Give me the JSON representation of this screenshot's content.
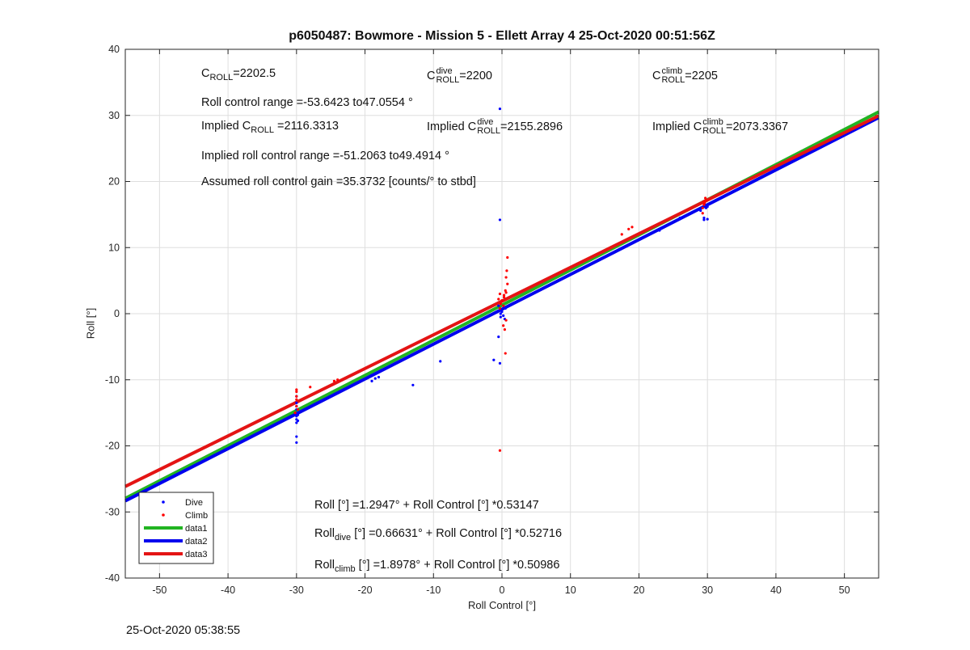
{
  "figure": {
    "title": "p6050487: Bowmore - Mission 5 - Ellett Array 4 25-Oct-2020 00:51:56Z",
    "timestamp": "25-Oct-2020 05:38:55"
  },
  "annotations": {
    "c_roll": {
      "base": "C",
      "sub": "ROLL",
      "value": "=2202.5"
    },
    "c_roll_dive": {
      "base": "C",
      "sup": "dive",
      "sub": "ROLL",
      "value": "=2200"
    },
    "c_roll_climb": {
      "base": "C",
      "sup": "climb",
      "sub": "ROLL",
      "value": "=2205"
    },
    "roll_range": "Roll control range =-53.6423 to47.0554 °",
    "implied_c_roll": {
      "prefix": "Implied C",
      "sub": "ROLL",
      "value": "=2116.3313"
    },
    "implied_c_roll_dive": {
      "prefix": "Implied C",
      "sup": "dive",
      "sub": "ROLL",
      "value": "=2155.2896"
    },
    "implied_c_roll_climb": {
      "prefix": "Implied C",
      "sup": "climb",
      "sub": "ROLL",
      "value": "=2073.3367"
    },
    "implied_range": "Implied roll control range =-51.2063 to49.4914 °",
    "gain": "Assumed roll control gain =35.3732 [counts/° to stbd]",
    "eq_all": "Roll [°] =1.2947° + Roll Control [°] *0.53147",
    "eq_dive": {
      "base": "Roll",
      "sub": "dive",
      "rest": " [°] =0.66631° + Roll Control [°] *0.52716"
    },
    "eq_climb": {
      "base": "Roll",
      "sub": "climb",
      "rest": " [°] =1.8978° + Roll Control [°] *0.50986"
    }
  },
  "chart_data": {
    "type": "scatter",
    "title": "p6050487: Bowmore - Mission 5 - Ellett Array 4 25-Oct-2020 00:51:56Z",
    "xlabel": "Roll Control [°]",
    "ylabel": "Roll [°]",
    "xlim": [
      -55,
      55
    ],
    "ylim": [
      -40,
      40
    ],
    "xticks": [
      -50,
      -40,
      -30,
      -20,
      -10,
      0,
      10,
      20,
      30,
      40,
      50
    ],
    "yticks": [
      -40,
      -30,
      -20,
      -10,
      0,
      10,
      20,
      30,
      40
    ],
    "grid": true,
    "legend_position": "bottom-left",
    "series": [
      {
        "name": "Dive",
        "kind": "points",
        "color": "#0000ff",
        "points": [
          [
            -30,
            -19.5
          ],
          [
            -30,
            -18.6
          ],
          [
            -30,
            -16.5
          ],
          [
            -30,
            -16
          ],
          [
            -30,
            -15.5
          ],
          [
            -30,
            -15
          ],
          [
            -30,
            -14.5
          ],
          [
            -30,
            -14
          ],
          [
            -30,
            -13.5
          ],
          [
            -30,
            -12.5
          ],
          [
            -29.8,
            -15.3
          ],
          [
            -29.8,
            -16.2
          ],
          [
            -19,
            -10.2
          ],
          [
            -18.5,
            -9.8
          ],
          [
            -18,
            -9.6
          ],
          [
            -13,
            -10.8
          ],
          [
            -9,
            -7.2
          ],
          [
            -1.2,
            -7
          ],
          [
            -0.3,
            -7.5
          ],
          [
            -0.5,
            -3.5
          ],
          [
            -0.3,
            31
          ],
          [
            -0.3,
            14.2
          ],
          [
            -0.2,
            0
          ],
          [
            -0.2,
            -0.5
          ],
          [
            -0.2,
            0.5
          ],
          [
            0,
            0.3
          ],
          [
            0.2,
            -0.3
          ],
          [
            0.5,
            0.8
          ],
          [
            -0.5,
            1.2
          ],
          [
            0.4,
            -0.8
          ],
          [
            23,
            12.6
          ],
          [
            26,
            14.5
          ],
          [
            29,
            15.6
          ],
          [
            29.5,
            14.2
          ],
          [
            29.5,
            14.5
          ],
          [
            29.8,
            16
          ],
          [
            29.6,
            16.5
          ],
          [
            30,
            14.3
          ],
          [
            30,
            16.2
          ]
        ]
      },
      {
        "name": "Climb",
        "kind": "points",
        "color": "#ff0000",
        "points": [
          [
            -30,
            -11.5
          ],
          [
            -30,
            -11.8
          ],
          [
            -30,
            -12.5
          ],
          [
            -30,
            -13
          ],
          [
            -30,
            -14
          ],
          [
            -29.8,
            -14.5
          ],
          [
            -30.2,
            -15
          ],
          [
            -28,
            -11.1
          ],
          [
            -24.5,
            -10.2
          ],
          [
            -24,
            -10
          ],
          [
            -0.3,
            -20.7
          ],
          [
            0.5,
            -6
          ],
          [
            0.4,
            -2.4
          ],
          [
            0.6,
            -1
          ],
          [
            0.2,
            -1.8
          ],
          [
            -0.2,
            1.5
          ],
          [
            0,
            2
          ],
          [
            0.3,
            2.5
          ],
          [
            -0.3,
            3
          ],
          [
            0.5,
            3.5
          ],
          [
            0.8,
            4.5
          ],
          [
            -0.5,
            2.2
          ],
          [
            0.2,
            1.2
          ],
          [
            0.6,
            5.5
          ],
          [
            0.7,
            6.5
          ],
          [
            0.8,
            8.5
          ],
          [
            -0.3,
            0.8
          ],
          [
            0.3,
            2.8
          ],
          [
            0.6,
            3.2
          ],
          [
            17.5,
            12
          ],
          [
            18.5,
            12.8
          ],
          [
            19,
            13.1
          ],
          [
            29.3,
            15.2
          ],
          [
            29.3,
            16
          ],
          [
            29.5,
            16.5
          ],
          [
            29.5,
            17
          ],
          [
            29.7,
            17.5
          ],
          [
            29.6,
            16.8
          ],
          [
            29.8,
            17.2
          ]
        ]
      },
      {
        "name": "data1",
        "kind": "line",
        "color": "#22b422",
        "intercept": 1.2947,
        "slope": 0.53147
      },
      {
        "name": "data2",
        "kind": "line",
        "color": "#0000ee",
        "intercept": 0.66631,
        "slope": 0.52716
      },
      {
        "name": "data3",
        "kind": "line",
        "color": "#e41414",
        "intercept": 1.8978,
        "slope": 0.50986
      }
    ]
  }
}
